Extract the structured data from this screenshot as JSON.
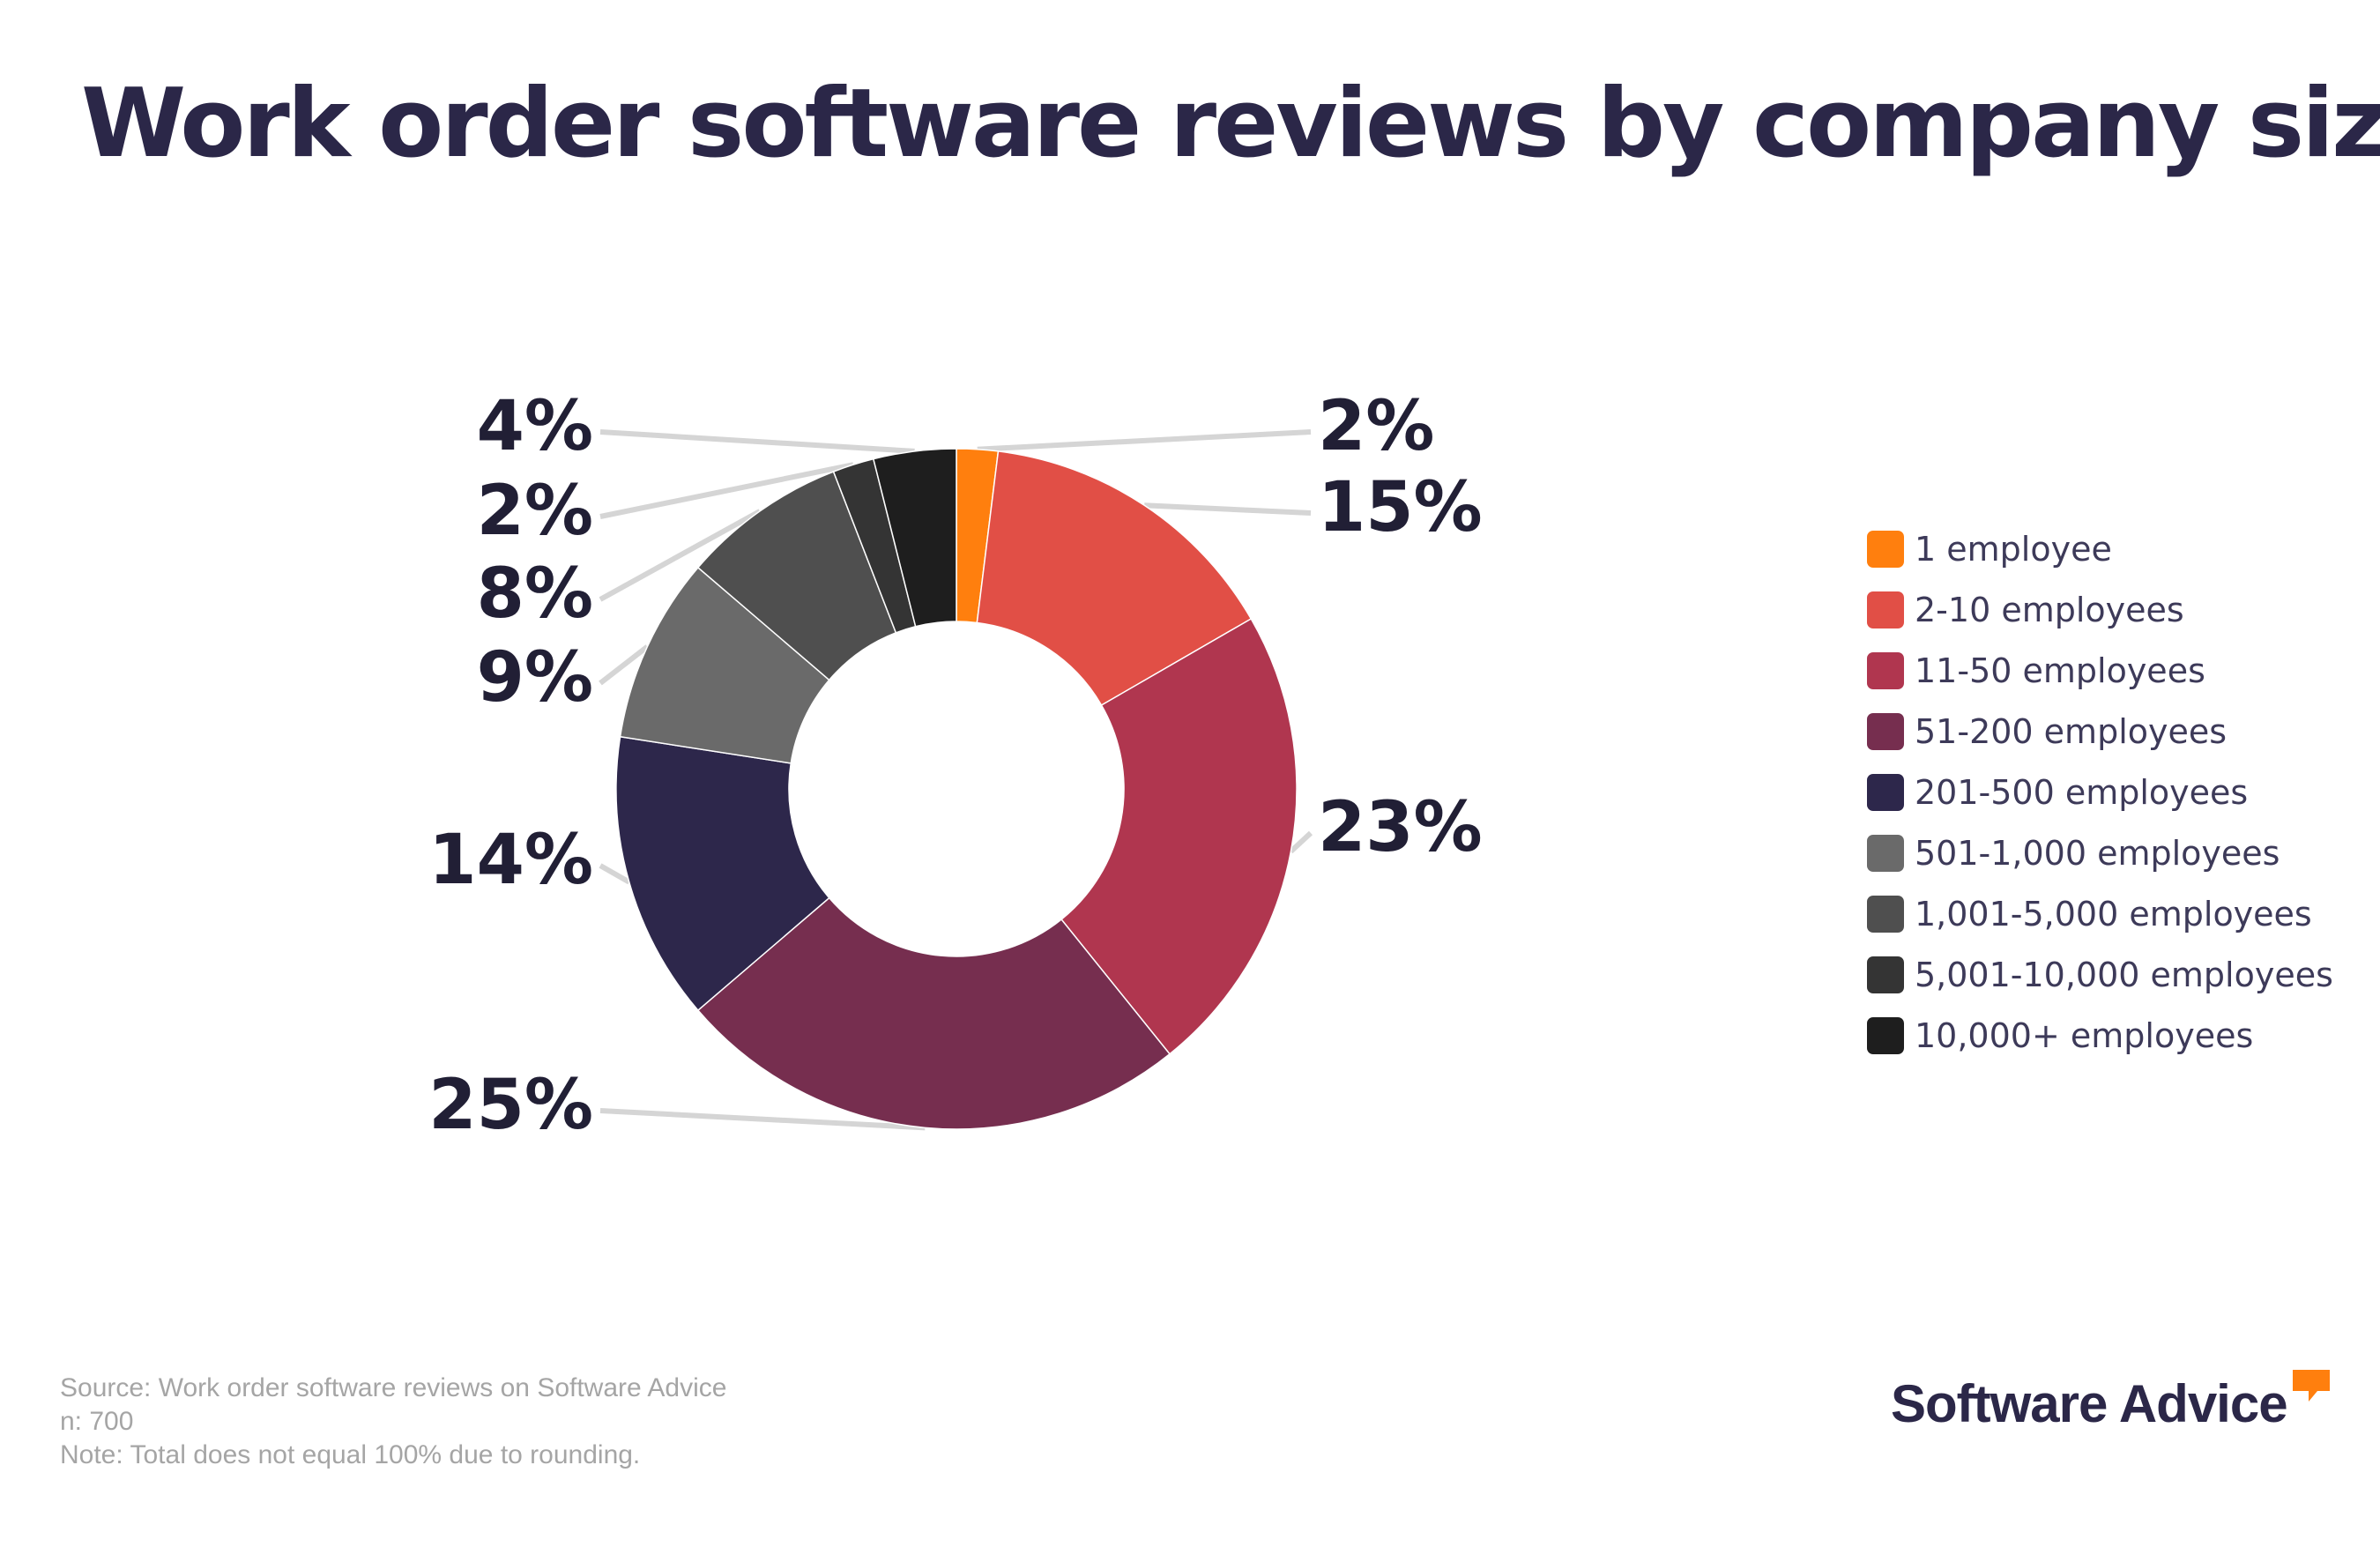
{
  "title": "Work order software reviews by company size",
  "chart_data": {
    "type": "donut",
    "title": "Work order software reviews by company size",
    "legend_position": "right",
    "categories": [
      "1 employee",
      "2-10 employees",
      "11-50 employees",
      "51-200 employees",
      "201-500 employees",
      "501-1,000 employees",
      "1,001-5,000 employees",
      "5,001-10,000 employees",
      "10,000+ employees"
    ],
    "values": [
      2,
      15,
      23,
      25,
      14,
      9,
      8,
      2,
      4
    ],
    "labels": [
      "2%",
      "15%",
      "23%",
      "25%",
      "14%",
      "9%",
      "8%",
      "2%",
      "4%"
    ],
    "colors": [
      "#ff7f0e",
      "#e14f46",
      "#b0364f",
      "#762e4f",
      "#2d274b",
      "#6a6a6a",
      "#4f4f4f",
      "#343434",
      "#1e1e1e"
    ],
    "unit": "%"
  },
  "footnotes": {
    "source": "Source: Work order software reviews on Software Advice",
    "n": "n: 700",
    "note": "Note: Total does not equal 100% due to rounding."
  },
  "brand": {
    "name": "Software Advice",
    "accent_color": "#ff7f0e",
    "text_color": "#2b2748"
  }
}
